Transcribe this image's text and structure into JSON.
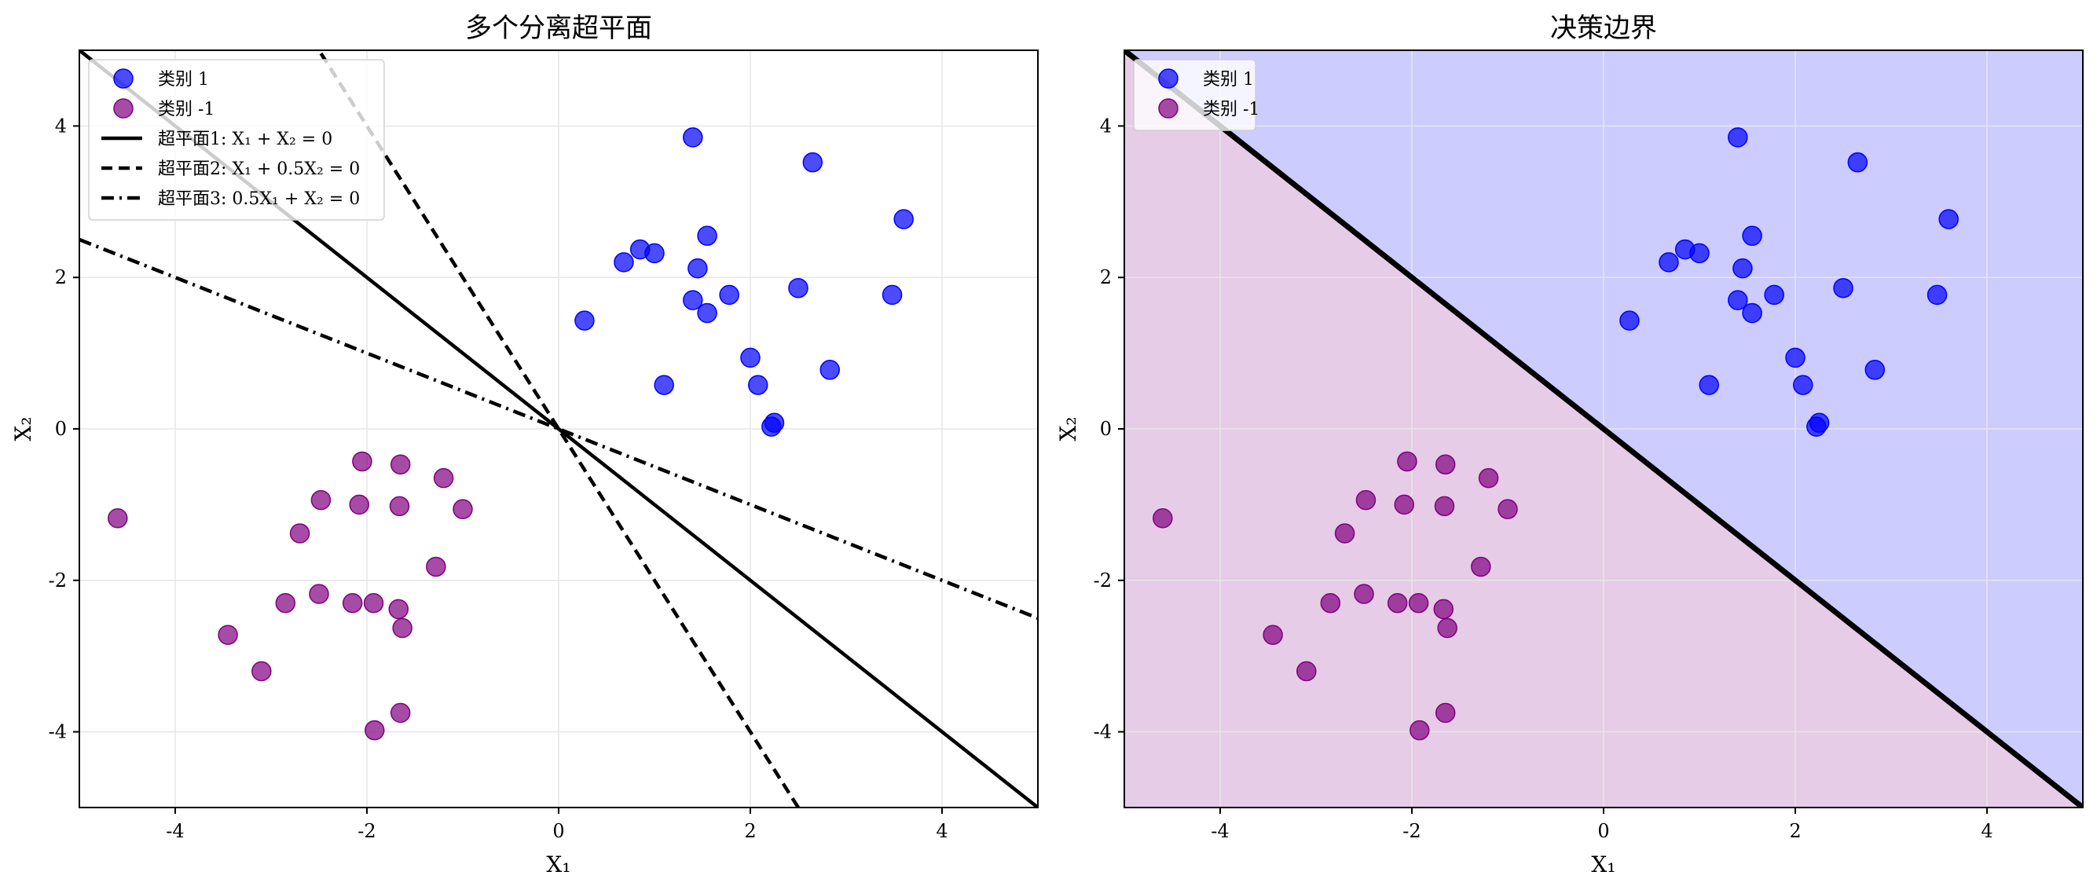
{
  "colors": {
    "class_pos": "#0000ff",
    "class_neg": "#800080",
    "fill_pos": "#ccccff",
    "fill_neg": "#e6cce6",
    "line": "#000000",
    "grid": "#e6e6e6"
  },
  "chart_data": [
    {
      "type": "scatter",
      "title": "多个分离超平面",
      "xlabel": "X₁",
      "ylabel": "X₂",
      "xlim": [
        -5,
        5
      ],
      "ylim": [
        -5,
        5
      ],
      "xticks": [
        -4,
        -2,
        0,
        2,
        4
      ],
      "yticks": [
        -4,
        -2,
        0,
        2,
        4
      ],
      "grid": true,
      "legend_position": "top-left",
      "series": [
        {
          "name": "类别 1",
          "color": "#0000ff",
          "points": [
            [
              1.4,
              3.85
            ],
            [
              2.65,
              3.52
            ],
            [
              3.6,
              2.77
            ],
            [
              0.85,
              2.37
            ],
            [
              1.0,
              2.32
            ],
            [
              0.68,
              2.2
            ],
            [
              1.55,
              2.55
            ],
            [
              1.45,
              2.12
            ],
            [
              2.5,
              1.86
            ],
            [
              3.48,
              1.77
            ],
            [
              1.78,
              1.77
            ],
            [
              1.4,
              1.7
            ],
            [
              1.55,
              1.53
            ],
            [
              0.27,
              1.43
            ],
            [
              2.0,
              0.94
            ],
            [
              2.83,
              0.78
            ],
            [
              1.1,
              0.58
            ],
            [
              2.08,
              0.58
            ],
            [
              2.25,
              0.08
            ],
            [
              2.22,
              0.03
            ]
          ]
        },
        {
          "name": "类别 -1",
          "color": "#800080",
          "points": [
            [
              -4.6,
              -1.18
            ],
            [
              -2.05,
              -0.43
            ],
            [
              -1.65,
              -0.47
            ],
            [
              -1.2,
              -0.65
            ],
            [
              -2.48,
              -0.94
            ],
            [
              -2.08,
              -1.0
            ],
            [
              -1.66,
              -1.02
            ],
            [
              -1.0,
              -1.06
            ],
            [
              -2.7,
              -1.38
            ],
            [
              -1.28,
              -1.82
            ],
            [
              -2.5,
              -2.18
            ],
            [
              -2.15,
              -2.3
            ],
            [
              -1.93,
              -2.3
            ],
            [
              -2.85,
              -2.3
            ],
            [
              -1.67,
              -2.38
            ],
            [
              -1.63,
              -2.63
            ],
            [
              -3.45,
              -2.72
            ],
            [
              -3.1,
              -3.2
            ],
            [
              -1.65,
              -3.75
            ],
            [
              -1.92,
              -3.98
            ]
          ]
        }
      ],
      "lines": [
        {
          "name": "超平面1: X₁ + X₂ = 0",
          "style": "solid",
          "w1": 1,
          "w2": 1
        },
        {
          "name": "超平面2: X₁ + 0.5X₂ = 0",
          "style": "dashed",
          "w1": 1,
          "w2": 0.5
        },
        {
          "name": "超平面3: 0.5X₁ + X₂ = 0",
          "style": "dashdot",
          "w1": 0.5,
          "w2": 1
        }
      ]
    },
    {
      "type": "scatter",
      "title": "决策边界",
      "xlabel": "X₁",
      "ylabel": "X₂",
      "xlim": [
        -5,
        5
      ],
      "ylim": [
        -5,
        5
      ],
      "xticks": [
        -4,
        -2,
        0,
        2,
        4
      ],
      "yticks": [
        -4,
        -2,
        0,
        2,
        4
      ],
      "grid": true,
      "legend_position": "top-left",
      "decision_boundary": "X₁ + X₂ = 0",
      "regions": [
        {
          "side": "X₁ + X₂ > 0",
          "color": "#ccccff"
        },
        {
          "side": "X₁ + X₂ < 0",
          "color": "#e6cce6"
        }
      ],
      "series": [
        {
          "name": "类别 1",
          "color": "#0000ff",
          "same_points_as": "chart 1 类别 1"
        },
        {
          "name": "类别 -1",
          "color": "#800080",
          "same_points_as": "chart 1 类别 -1"
        }
      ]
    }
  ]
}
